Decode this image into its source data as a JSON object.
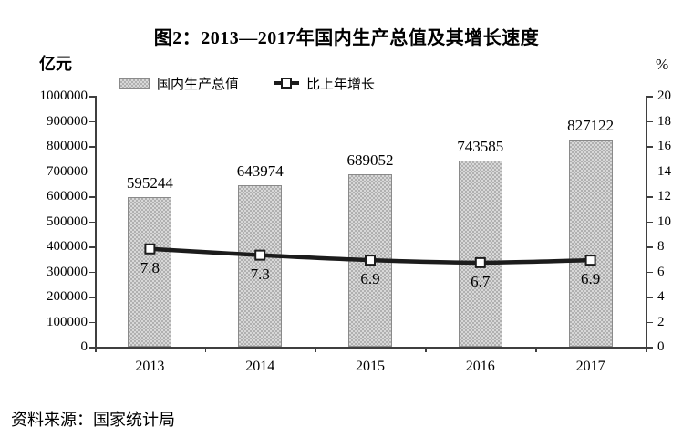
{
  "title": "图2：2013—2017年国内生产总值及其增长速度",
  "source_note": "资料来源：国家统计局",
  "chart_data": {
    "type": "bar",
    "subtype": "bar-line-combo",
    "title": "图2：2013—2017年国内生产总值及其增长速度",
    "categories": [
      "2013",
      "2014",
      "2015",
      "2016",
      "2017"
    ],
    "series": [
      {
        "name": "国内生产总值",
        "type": "bar",
        "axis": "left",
        "values": [
          595244,
          643974,
          689052,
          743585,
          827122
        ]
      },
      {
        "name": "比上年增长",
        "type": "line",
        "axis": "right",
        "values": [
          7.8,
          7.3,
          6.9,
          6.7,
          6.9
        ]
      }
    ],
    "y_left": {
      "unit": "亿元",
      "min": 0,
      "max": 1000000,
      "step": 100000
    },
    "y_right": {
      "unit": "%",
      "min": 0,
      "max": 20,
      "step": 2
    },
    "legend_position": "top",
    "grid": false,
    "colors": {
      "bar_fill_light": "#d8d8d8",
      "bar_fill_dark": "#b0b0b0",
      "bar_border": "#8a8a8a",
      "line": "#1c1c1c",
      "marker_fill": "#ffffff",
      "marker_border": "#1c1c1c",
      "axis": "#3f3f3f",
      "text": "#000000"
    }
  }
}
